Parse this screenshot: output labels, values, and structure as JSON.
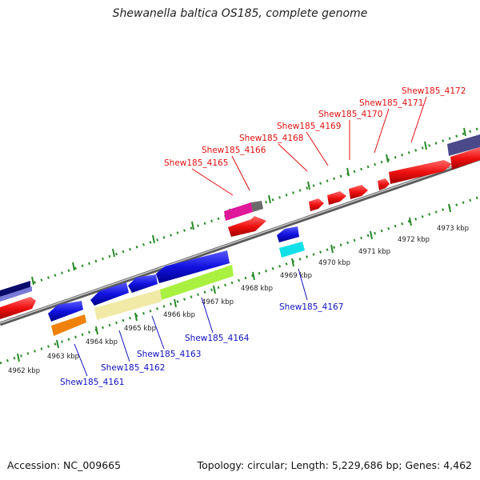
{
  "title": "Shewanella baltica OS185, complete genome",
  "footer": {
    "accession": "Accession: NC_009665",
    "summary": "Topology: circular; Length: 5,229,686 bp; Genes: 4,462"
  },
  "colors": {
    "top_labels": "#e01010",
    "bottom_labels": "#1010c0",
    "forward_cds": "#f01010",
    "reverse_cds": "#1212e0",
    "backbone": "#8a8a8a",
    "tick": "#2a8a2a"
  },
  "tick_labels": [
    "4962 kbp",
    "4963 kbp",
    "4964 kbp",
    "4965 kbp",
    "4966 kbp",
    "4967 kbp",
    "4968 kbp",
    "4969 kbp",
    "4970 kbp",
    "4971 kbp",
    "4972 kbp",
    "4973 kbp"
  ],
  "top_genes": [
    "Shew185_4165",
    "Shew185_4166",
    "Shew185_4168",
    "Shew185_4169",
    "Shew185_4170",
    "Shew185_4171",
    "Shew185_4172"
  ],
  "bottom_genes": [
    "Shew185_4161",
    "Shew185_4162",
    "Shew185_4163",
    "Shew185_4164",
    "Shew185_4167"
  ]
}
